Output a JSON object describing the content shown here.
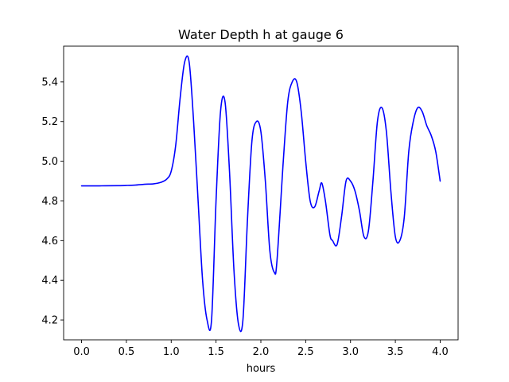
{
  "chart_data": {
    "type": "line",
    "title": "Water Depth h at gauge 6",
    "xlabel": "hours",
    "ylabel": "",
    "xlim": [
      -0.2,
      4.2
    ],
    "ylim": [
      4.1,
      5.58
    ],
    "x_ticks": [
      0.0,
      0.5,
      1.0,
      1.5,
      2.0,
      2.5,
      3.0,
      3.5,
      4.0
    ],
    "x_tick_labels": [
      "0.0",
      "0.5",
      "1.0",
      "1.5",
      "2.0",
      "2.5",
      "3.0",
      "3.5",
      "4.0"
    ],
    "y_ticks": [
      4.2,
      4.4,
      4.6,
      4.8,
      5.0,
      5.2,
      5.4
    ],
    "y_tick_labels": [
      "4.2",
      "4.4",
      "4.6",
      "4.8",
      "5.0",
      "5.2",
      "5.4"
    ],
    "grid": false,
    "legend": "none",
    "series": [
      {
        "color": "#0000ff",
        "x": [
          0.0,
          0.2,
          0.4,
          0.5,
          0.6,
          0.7,
          0.8,
          0.88,
          0.95,
          1.0,
          1.05,
          1.1,
          1.15,
          1.2,
          1.25,
          1.3,
          1.35,
          1.4,
          1.45,
          1.5,
          1.55,
          1.6,
          1.65,
          1.7,
          1.75,
          1.8,
          1.85,
          1.9,
          1.95,
          2.0,
          2.05,
          2.1,
          2.15,
          2.18,
          2.25,
          2.3,
          2.35,
          2.4,
          2.45,
          2.5,
          2.55,
          2.6,
          2.65,
          2.68,
          2.72,
          2.77,
          2.8,
          2.85,
          2.9,
          2.95,
          3.0,
          3.05,
          3.1,
          3.15,
          3.2,
          3.25,
          3.3,
          3.35,
          3.4,
          3.45,
          3.5,
          3.55,
          3.6,
          3.65,
          3.7,
          3.75,
          3.8,
          3.85,
          3.9,
          3.95,
          4.0
        ],
        "values": [
          4.876,
          4.876,
          4.877,
          4.878,
          4.88,
          4.884,
          4.886,
          4.893,
          4.91,
          4.95,
          5.08,
          5.32,
          5.5,
          5.5,
          5.2,
          4.8,
          4.4,
          4.2,
          4.2,
          4.8,
          5.25,
          5.3,
          4.95,
          4.45,
          4.18,
          4.2,
          4.7,
          5.1,
          5.2,
          5.15,
          4.9,
          4.55,
          4.44,
          4.5,
          5.0,
          5.3,
          5.4,
          5.4,
          5.25,
          5.0,
          4.8,
          4.77,
          4.85,
          4.89,
          4.8,
          4.63,
          4.6,
          4.58,
          4.72,
          4.9,
          4.9,
          4.85,
          4.75,
          4.62,
          4.65,
          4.9,
          5.2,
          5.27,
          5.15,
          4.85,
          4.62,
          4.6,
          4.72,
          5.05,
          5.2,
          5.27,
          5.25,
          5.18,
          5.13,
          5.05,
          4.9
        ]
      }
    ]
  }
}
